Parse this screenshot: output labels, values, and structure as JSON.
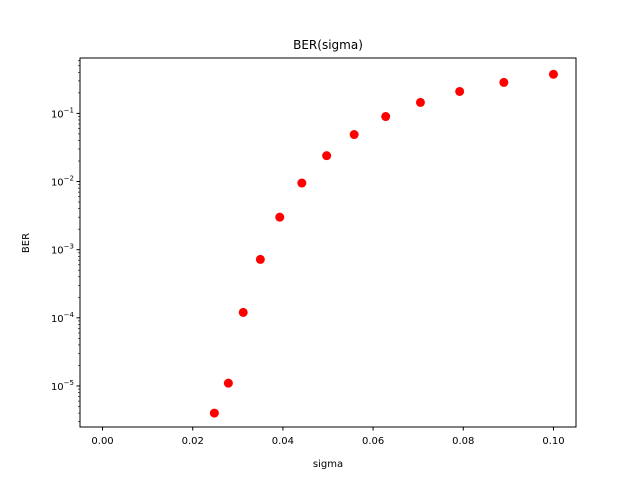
{
  "chart_data": {
    "type": "scatter",
    "title": "BER(sigma)",
    "xlabel": "sigma",
    "ylabel": "BER",
    "yscale": "log",
    "xlim": [
      -0.005,
      0.105
    ],
    "ylim": [
      2.5e-06,
      0.65
    ],
    "grid": false,
    "marker_color": "#ff0000",
    "x_ticks": [
      {
        "value": 0.0,
        "label": "0.00"
      },
      {
        "value": 0.02,
        "label": "0.02"
      },
      {
        "value": 0.04,
        "label": "0.04"
      },
      {
        "value": 0.06,
        "label": "0.06"
      },
      {
        "value": 0.08,
        "label": "0.08"
      },
      {
        "value": 0.1,
        "label": "0.10"
      }
    ],
    "y_ticks": [
      {
        "exp": -5,
        "base": "10",
        "power": "−5"
      },
      {
        "exp": -4,
        "base": "10",
        "power": "−4"
      },
      {
        "exp": -3,
        "base": "10",
        "power": "−3"
      },
      {
        "exp": -2,
        "base": "10",
        "power": "−2"
      },
      {
        "exp": -1,
        "base": "10",
        "power": "−1"
      }
    ],
    "series": [
      {
        "x": [
          0.0248,
          0.0279,
          0.0312,
          0.035,
          0.0393,
          0.0442,
          0.0497,
          0.0558,
          0.0628,
          0.0705,
          0.0792,
          0.089,
          0.1
        ],
        "y": [
          4e-06,
          1.1e-05,
          0.00012,
          0.00072,
          0.003,
          0.0095,
          0.024,
          0.049,
          0.09,
          0.145,
          0.21,
          0.285,
          0.375
        ]
      }
    ]
  }
}
